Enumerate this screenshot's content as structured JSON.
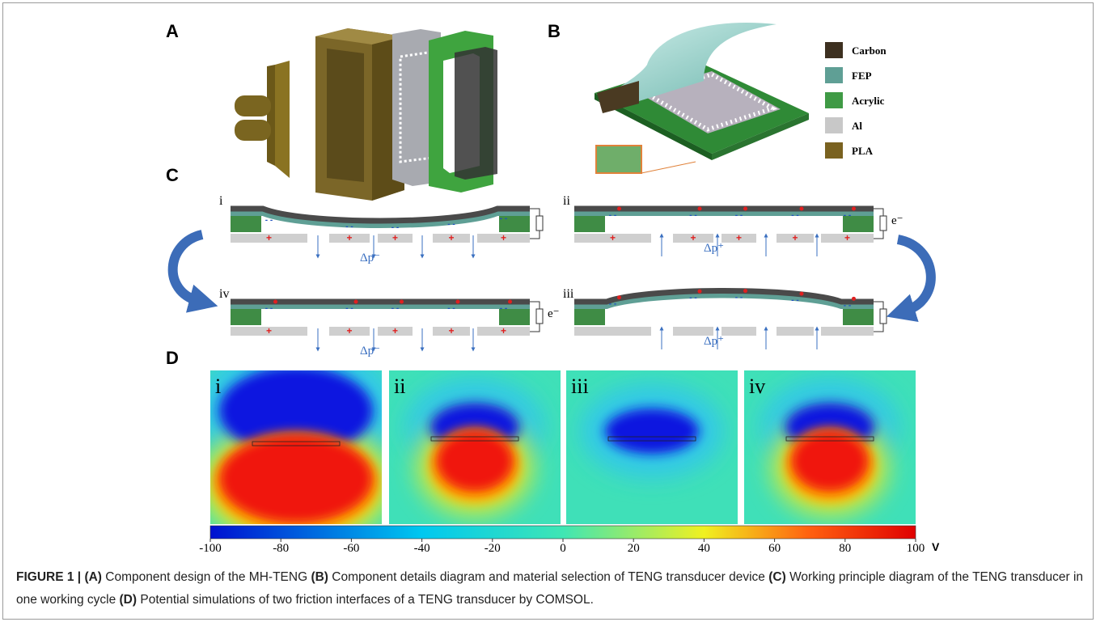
{
  "panel_labels": [
    "A",
    "B",
    "C",
    "D"
  ],
  "materials": [
    "Carbon",
    "FEP",
    "Acrylic",
    "Al",
    "PLA"
  ],
  "cycle": {
    "stages": [
      "i",
      "ii",
      "iii",
      "iv"
    ],
    "pressure_labels": [
      "Δp⁻",
      "Δp⁺",
      "Δp⁺",
      "Δp⁻"
    ],
    "electron_labels": [
      "e⁻",
      "e⁻"
    ]
  },
  "simulations": {
    "labels": [
      "i",
      "ii",
      "iii",
      "iv"
    ],
    "colorbar": {
      "ticks": [
        -100,
        -80,
        -60,
        -40,
        -20,
        0,
        20,
        40,
        60,
        80,
        100
      ],
      "unit": "V"
    }
  },
  "caption": {
    "label": "FIGURE 1 |",
    "parts": [
      {
        "key": "(A)",
        "text": "Component design of the MH-TENG"
      },
      {
        "key": "(B)",
        "text": "Component details diagram and material selection of TENG transducer device"
      },
      {
        "key": "(C)",
        "text": "Working principle diagram of the TENG transducer in one working cycle"
      },
      {
        "key": "(D)",
        "text": "Potential simulations of two friction interfaces of a TENG transducer by COMSOL."
      }
    ]
  }
}
